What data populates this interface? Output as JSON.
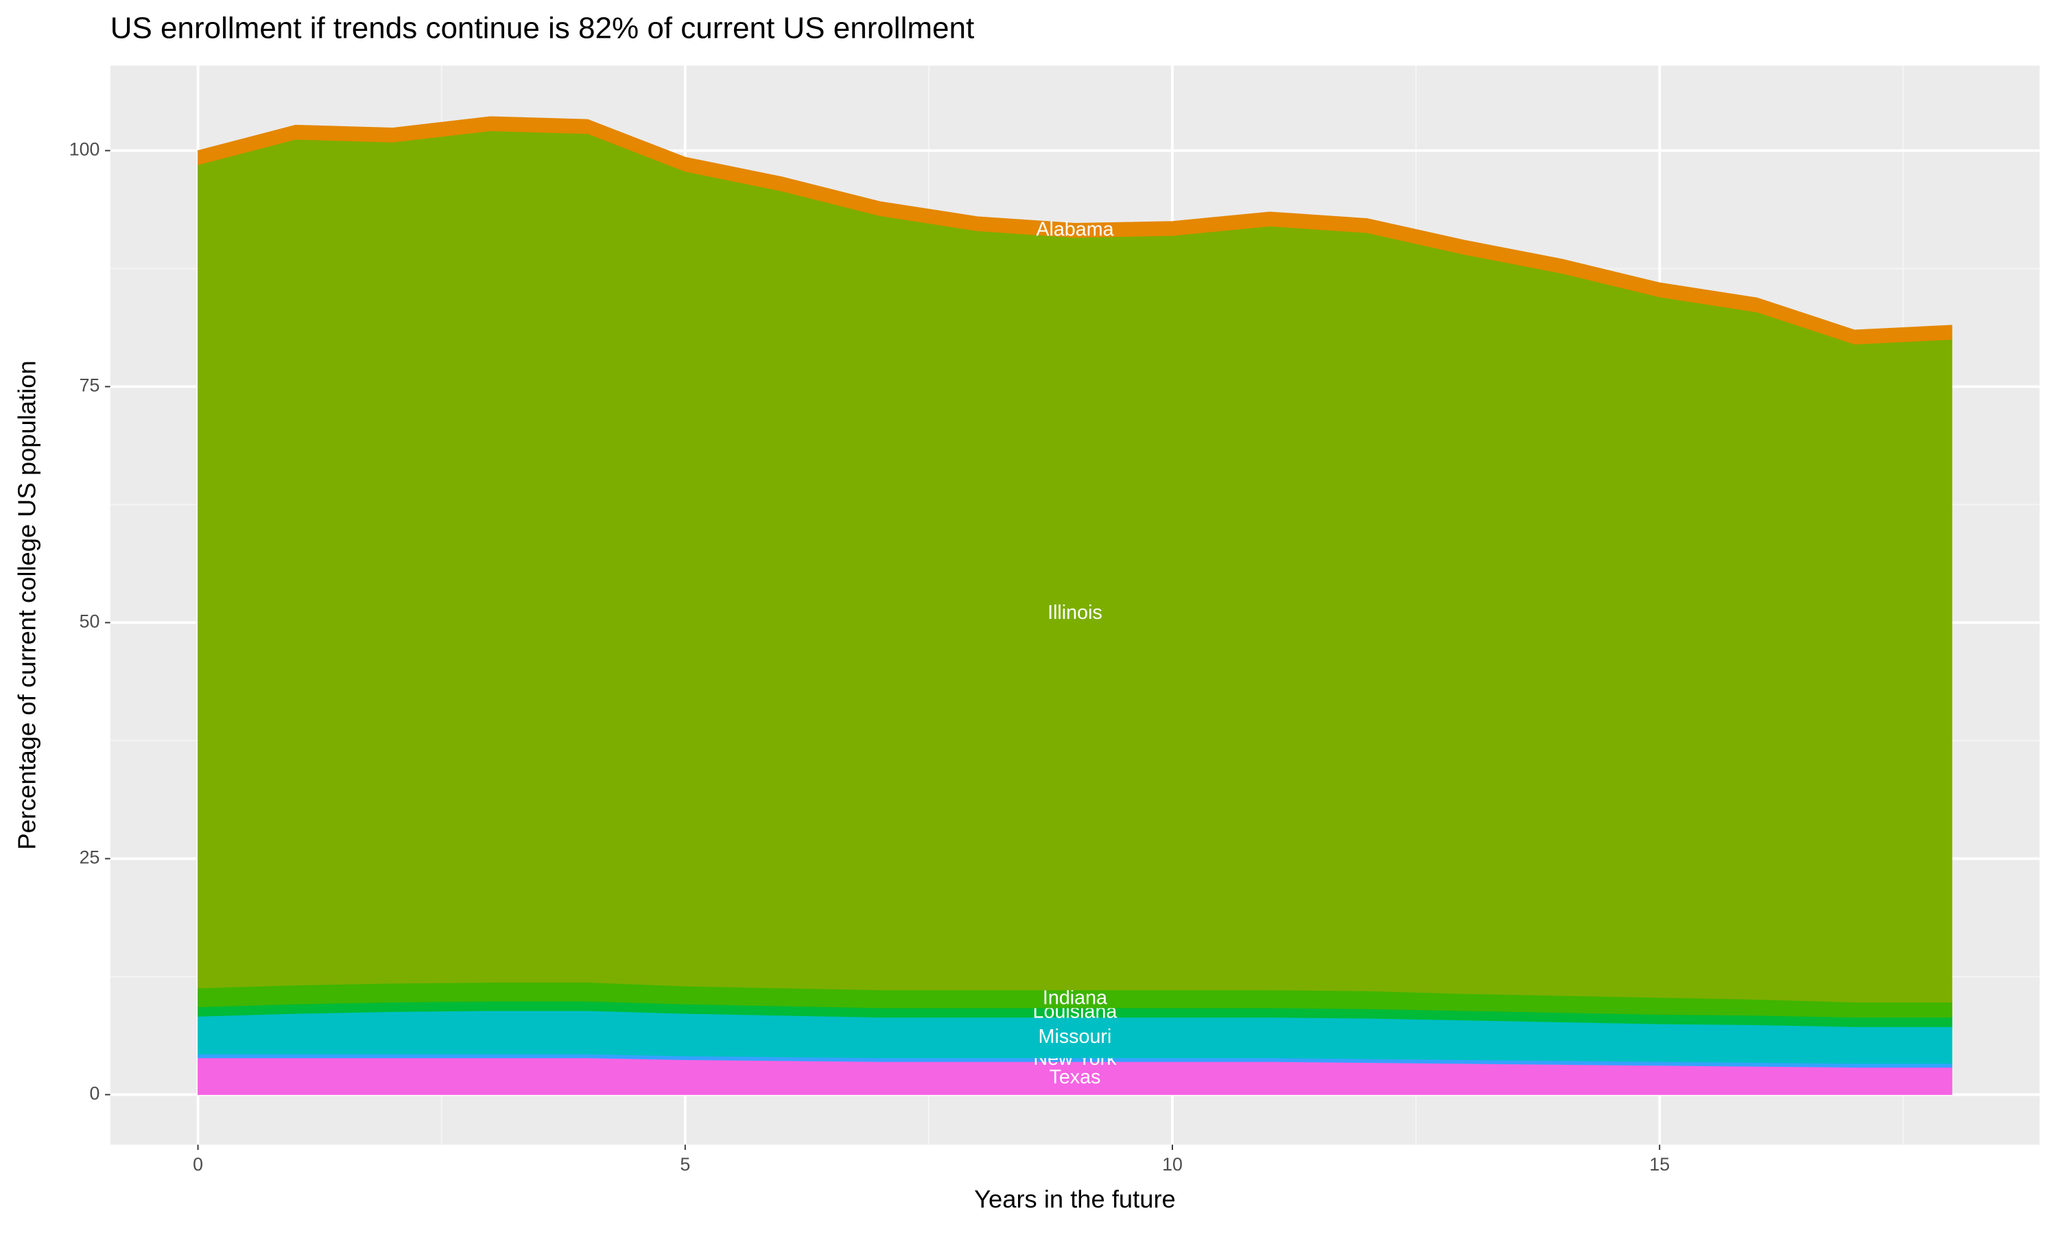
{
  "chart_data": {
    "type": "stacked_area",
    "title": "US enrollment if trends continue is 82% of current US enrollment",
    "x_label": "Years in the future",
    "y_label": "Percentage of current college US population",
    "x": [
      0,
      1,
      2,
      3,
      4,
      5,
      6,
      7,
      8,
      9,
      10,
      11,
      12,
      13,
      14,
      15,
      16,
      17,
      18
    ],
    "series": [
      {
        "name": "Texas",
        "color": "#f564e3",
        "values": [
          3.9,
          3.9,
          3.9,
          3.9,
          3.9,
          3.7,
          3.6,
          3.5,
          3.5,
          3.5,
          3.5,
          3.5,
          3.4,
          3.3,
          3.2,
          3.1,
          3.0,
          2.9,
          2.9
        ]
      },
      {
        "name": "New York",
        "color": "#35a2ff",
        "values": [
          0.4,
          0.4,
          0.4,
          0.4,
          0.4,
          0.4,
          0.4,
          0.4,
          0.4,
          0.4,
          0.4,
          0.4,
          0.4,
          0.4,
          0.4,
          0.4,
          0.4,
          0.4,
          0.4
        ]
      },
      {
        "name": "Missouri",
        "color": "#00bfc4",
        "values": [
          4.0,
          4.3,
          4.5,
          4.6,
          4.6,
          4.5,
          4.4,
          4.3,
          4.3,
          4.3,
          4.3,
          4.3,
          4.3,
          4.2,
          4.1,
          4.0,
          4.0,
          3.9,
          3.9
        ]
      },
      {
        "name": "Louisiana",
        "color": "#00ba38",
        "values": [
          1.0,
          1.0,
          1.0,
          1.0,
          1.0,
          1.0,
          1.0,
          1.0,
          1.0,
          1.0,
          1.0,
          1.0,
          1.0,
          1.0,
          1.0,
          1.0,
          1.0,
          1.0,
          1.0
        ]
      },
      {
        "name": "Indiana",
        "color": "#3fb500",
        "values": [
          2.0,
          2.0,
          2.0,
          2.0,
          2.0,
          1.9,
          1.9,
          1.9,
          1.9,
          1.9,
          1.9,
          1.9,
          1.9,
          1.8,
          1.8,
          1.8,
          1.7,
          1.6,
          1.6
        ]
      },
      {
        "name": "Illinois",
        "color": "#7cae00",
        "values": [
          87.2,
          89.6,
          89.1,
          90.2,
          89.9,
          86.3,
          84.4,
          82.0,
          80.4,
          79.7,
          79.9,
          80.9,
          80.3,
          78.3,
          76.5,
          74.2,
          72.8,
          69.7,
          70.2
        ]
      },
      {
        "name": "Alabama",
        "color": "#e58700",
        "values": [
          1.5,
          1.5,
          1.5,
          1.5,
          1.5,
          1.5,
          1.5,
          1.5,
          1.5,
          1.5,
          1.5,
          1.5,
          1.5,
          1.5,
          1.5,
          1.5,
          1.5,
          1.5,
          1.5
        ]
      }
    ],
    "label_x": 9,
    "xlim": [
      -0.9,
      18.9
    ],
    "xticks": [
      0,
      5,
      10,
      15
    ],
    "ylim": [
      -5.3,
      109
    ],
    "yticks": [
      0,
      25,
      50,
      75,
      100
    ],
    "grid": true
  }
}
